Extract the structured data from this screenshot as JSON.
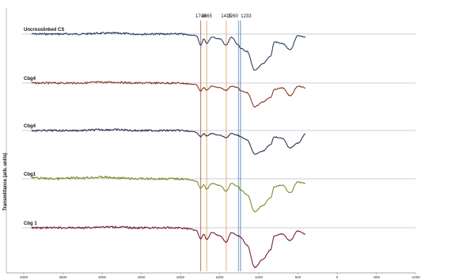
{
  "chart_data": {
    "type": "line",
    "ylabel": "Transmittance (arb. units)",
    "xlabel": "",
    "x_ticks": [
      4000,
      3500,
      3000,
      2500,
      2000,
      1500,
      1000,
      500,
      0,
      -500,
      -1000
    ],
    "xlim": [
      4000,
      -1000
    ],
    "marker_lines": [
      {
        "label": "1740",
        "x": 1740,
        "color": "#b5483d"
      },
      {
        "label": "1665",
        "x": 1665,
        "color": "#d8a04a"
      },
      {
        "label": "1415",
        "x": 1415,
        "color": "#e89155"
      },
      {
        "label": "1260",
        "x": 1260,
        "color": "#5b87c4"
      },
      {
        "label": "1233",
        "x": 1233,
        "color": "#3f6fa8"
      }
    ],
    "series": [
      {
        "name": "Uncrosslinked CS",
        "color": "#2d3f63",
        "baseline": 43,
        "noise": 2.4,
        "x": [
          3900,
          3600,
          3300,
          3000,
          2800,
          2600,
          2200,
          2000,
          1900,
          1800,
          1740,
          1700,
          1665,
          1600,
          1500,
          1415,
          1350,
          1260,
          1233,
          1150,
          1050,
          950,
          850,
          800,
          700,
          600,
          500,
          400
        ],
        "y": [
          0,
          0,
          0,
          1,
          1,
          0,
          0,
          0,
          -1,
          -2,
          -14,
          -6,
          -12,
          -4,
          -6,
          -14,
          -4,
          -14,
          -18,
          -22,
          -46,
          -38,
          -28,
          -10,
          -12,
          -20,
          -2,
          -4
        ]
      },
      {
        "name": "Cbg4",
        "color": "#8b3a2b",
        "baseline": 105,
        "noise": 2.4,
        "x": [
          3900,
          3600,
          3300,
          3000,
          2800,
          2600,
          2200,
          2000,
          1900,
          1800,
          1740,
          1700,
          1665,
          1600,
          1500,
          1415,
          1350,
          1260,
          1233,
          1150,
          1050,
          950,
          850,
          800,
          700,
          600,
          500,
          400
        ],
        "y": [
          0,
          0,
          0,
          1,
          1,
          0,
          0,
          0,
          -1,
          -2,
          -10,
          -6,
          -9,
          -4,
          -6,
          -9,
          -4,
          -6,
          -10,
          -12,
          -30,
          -24,
          -18,
          -8,
          -6,
          -16,
          -4,
          -6
        ]
      },
      {
        "name": "Cbg4",
        "color": "#2d3350",
        "baseline": 165,
        "noise": 2.4,
        "x": [
          3900,
          3600,
          3300,
          3000,
          2800,
          2600,
          2200,
          2000,
          1900,
          1800,
          1740,
          1700,
          1665,
          1600,
          1500,
          1415,
          1350,
          1260,
          1233,
          1150,
          1050,
          950,
          850,
          800,
          700,
          600,
          500,
          400
        ],
        "y": [
          0,
          0,
          0,
          1,
          1,
          0,
          0,
          0,
          -1,
          -2,
          -8,
          -4,
          -7,
          -4,
          -6,
          -9,
          -4,
          -6,
          -8,
          -12,
          -30,
          -26,
          -18,
          -8,
          -10,
          -22,
          -16,
          -4
        ]
      },
      {
        "name": "Cbg1",
        "color": "#7e8e2e",
        "baseline": 226,
        "noise": 2.8,
        "x": [
          3900,
          3600,
          3300,
          3000,
          2800,
          2600,
          2200,
          2000,
          1900,
          1800,
          1740,
          1700,
          1665,
          1600,
          1500,
          1415,
          1350,
          1260,
          1233,
          1150,
          1050,
          950,
          850,
          800,
          700,
          600,
          500,
          400
        ],
        "y": [
          1,
          0,
          1,
          2,
          1,
          0,
          0,
          0,
          -1,
          -3,
          -12,
          -8,
          -13,
          -6,
          -8,
          -16,
          -6,
          -10,
          -14,
          -20,
          -42,
          -34,
          -24,
          -10,
          -8,
          -18,
          -4,
          -6
        ]
      },
      {
        "name": "Cbg 1",
        "color": "#7a1e36",
        "baseline": 288,
        "noise": 2.4,
        "x": [
          3900,
          3600,
          3300,
          3000,
          2800,
          2600,
          2200,
          2000,
          1900,
          1800,
          1740,
          1700,
          1665,
          1600,
          1500,
          1415,
          1350,
          1260,
          1233,
          1150,
          1050,
          950,
          850,
          800,
          700,
          600,
          500,
          400
        ],
        "y": [
          0,
          0,
          0,
          1,
          1,
          0,
          0,
          0,
          -1,
          -3,
          -14,
          -8,
          -15,
          -6,
          -10,
          -18,
          -6,
          -10,
          -12,
          -22,
          -50,
          -40,
          -28,
          -10,
          -8,
          -16,
          -4,
          -8
        ]
      }
    ]
  }
}
